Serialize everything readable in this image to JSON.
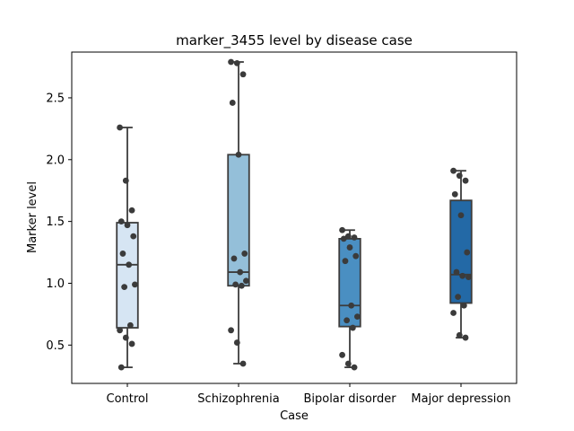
{
  "chart_data": {
    "type": "box",
    "title": "marker_3455 level by disease case",
    "xlabel": "Case",
    "ylabel": "Marker level",
    "ylim": [
      0.19,
      2.87
    ],
    "yticks": [
      "0.5",
      "1.0",
      "1.5",
      "2.0",
      "2.5"
    ],
    "categories": [
      "Control",
      "Schizophrenia",
      "Bipolar disorder",
      "Major depression"
    ],
    "colors": [
      "#d6e5f3",
      "#94bfd9",
      "#4a8fc2",
      "#2369a6"
    ],
    "box_edge_color": "#3c3c3c",
    "point_color": "#3b3b3b",
    "grid": false,
    "legend": "none",
    "boxes": [
      {
        "category": "Control",
        "whisker_low": 0.32,
        "q1": 0.64,
        "median": 1.15,
        "q3": 1.49,
        "whisker_high": 2.26,
        "points": [
          2.26,
          1.83,
          1.59,
          1.5,
          1.47,
          1.38,
          1.24,
          1.15,
          0.99,
          0.97,
          0.66,
          0.62,
          0.56,
          0.51,
          0.32
        ]
      },
      {
        "category": "Schizophrenia",
        "whisker_low": 0.35,
        "q1": 0.98,
        "median": 1.09,
        "q3": 2.04,
        "whisker_high": 2.79,
        "points": [
          2.79,
          2.78,
          2.69,
          2.46,
          2.04,
          1.24,
          1.2,
          1.09,
          1.02,
          0.99,
          0.98,
          0.62,
          0.52,
          0.35
        ]
      },
      {
        "category": "Bipolar disorder",
        "whisker_low": 0.32,
        "q1": 0.65,
        "median": 0.82,
        "q3": 1.36,
        "whisker_high": 1.43,
        "points": [
          1.43,
          1.38,
          1.37,
          1.36,
          1.29,
          1.22,
          1.18,
          0.82,
          0.73,
          0.7,
          0.64,
          0.42,
          0.35,
          0.32
        ]
      },
      {
        "category": "Major depression",
        "whisker_low": 0.56,
        "q1": 0.84,
        "median": 1.07,
        "q3": 1.67,
        "whisker_high": 1.91,
        "points": [
          1.91,
          1.87,
          1.83,
          1.72,
          1.55,
          1.25,
          1.09,
          1.06,
          1.05,
          0.89,
          0.82,
          0.76,
          0.58,
          0.56
        ]
      }
    ]
  }
}
